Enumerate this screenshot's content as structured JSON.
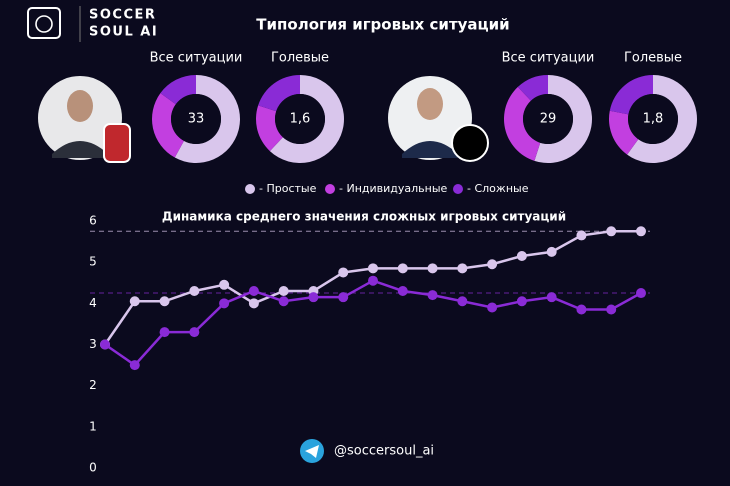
{
  "header": {
    "logo_line1": "SOCCER",
    "logo_line2": "SOUL AI",
    "title": "Типология игровых ситуаций"
  },
  "legend": {
    "categories": [
      "- Простые",
      "- Индивидуальные",
      "- Сложные"
    ],
    "colors": [
      "#d9c6ec",
      "#c23fe0",
      "#8a2bd6"
    ]
  },
  "chart_data": [
    {
      "type": "pie",
      "title": "Все ситуации",
      "center_label": "33",
      "values": [
        58,
        27,
        15
      ]
    },
    {
      "type": "pie",
      "title": "Голевые",
      "center_label": "1,6",
      "values": [
        62,
        18,
        20
      ]
    },
    {
      "type": "pie",
      "title": "Все ситуации",
      "center_label": "29",
      "values": [
        55,
        33,
        12
      ]
    },
    {
      "type": "pie",
      "title": "Голевые",
      "center_label": "1,8",
      "values": [
        60,
        18,
        22
      ]
    },
    {
      "type": "line",
      "title": "Динамика среднего значения сложных игровых ситуаций",
      "categories": [
        null,
        null,
        null,
        null,
        null,
        null,
        null,
        null,
        null,
        null,
        null,
        null,
        null,
        null,
        null,
        null,
        null,
        null,
        null
      ],
      "series": [
        {
          "color": "#d9c6ec",
          "values": [
            3.0,
            4.05,
            4.05,
            4.3,
            4.45,
            4.0,
            4.3,
            4.3,
            4.75,
            4.85,
            4.85,
            4.85,
            4.85,
            4.95,
            5.15,
            5.25,
            5.65,
            5.75,
            5.75
          ],
          "reference_line": 5.75
        },
        {
          "color": "#8a2bd6",
          "values": [
            3.0,
            2.5,
            3.3,
            3.3,
            4.0,
            4.3,
            4.05,
            4.15,
            4.15,
            4.55,
            4.3,
            4.2,
            4.05,
            3.9,
            4.05,
            4.15,
            3.85,
            3.85,
            4.25
          ],
          "reference_line": 4.25
        }
      ],
      "ylim": [
        0,
        6
      ],
      "yticks": [
        0,
        1,
        2,
        3,
        4,
        5,
        6
      ],
      "grid": false
    }
  ],
  "footer": {
    "handle": "@soccersoul_ai"
  }
}
